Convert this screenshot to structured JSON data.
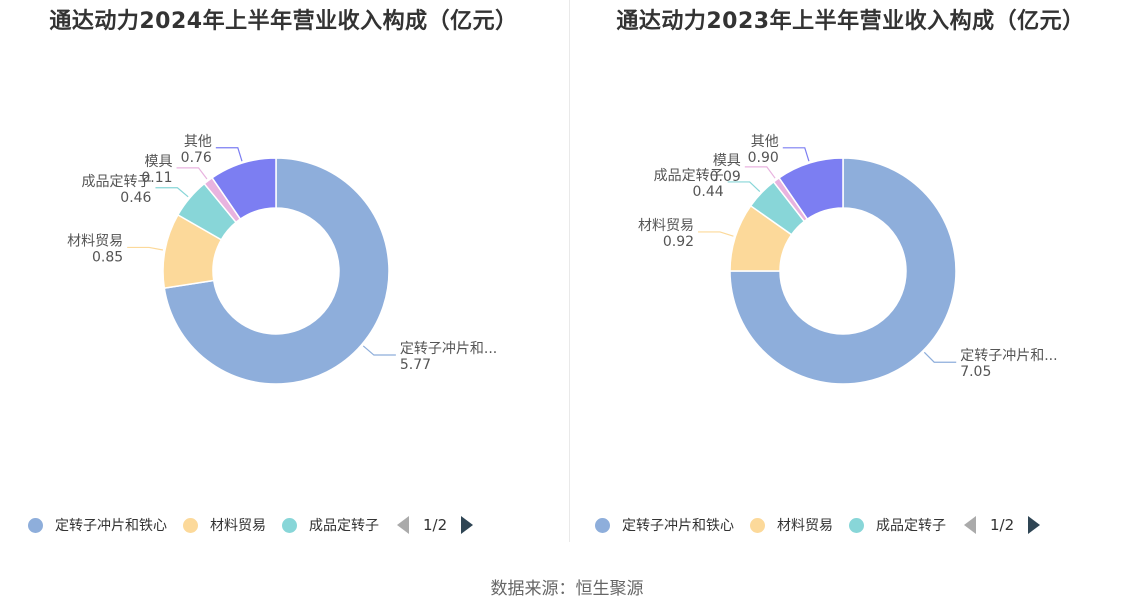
{
  "chart_data": [
    {
      "type": "pie",
      "title": "通达动力2024年上半年营业收入构成（亿元）",
      "legend": {
        "position": "bottom-left",
        "page_indicator": "1/2"
      },
      "slices": [
        {
          "name": "定转子冲片和铁心",
          "label": "定转子冲片和...",
          "value": 5.77,
          "value_label": "5.77",
          "color": "#8eaedb"
        },
        {
          "name": "材料贸易",
          "label": "材料贸易",
          "value": 0.85,
          "value_label": "0.85",
          "color": "#fcd99a"
        },
        {
          "name": "成品定转子",
          "label": "成品定转子",
          "value": 0.46,
          "value_label": "0.46",
          "color": "#88d6d8"
        },
        {
          "name": "模具",
          "label": "模具",
          "value": 0.11,
          "value_label": "0.11",
          "color": "#e8b3df"
        },
        {
          "name": "其他",
          "label": "其他",
          "value": 0.76,
          "value_label": "0.76",
          "color": "#7c7ef2"
        }
      ]
    },
    {
      "type": "pie",
      "title": "通达动力2023年上半年营业收入构成（亿元）",
      "legend": {
        "position": "bottom-left",
        "page_indicator": "1/2"
      },
      "slices": [
        {
          "name": "定转子冲片和铁心",
          "label": "定转子冲片和...",
          "value": 7.05,
          "value_label": "7.05",
          "color": "#8eaedb"
        },
        {
          "name": "材料贸易",
          "label": "材料贸易",
          "value": 0.92,
          "value_label": "0.92",
          "color": "#fcd99a"
        },
        {
          "name": "成品定转子",
          "label": "成品定转子",
          "value": 0.44,
          "value_label": "0.44",
          "color": "#88d6d8"
        },
        {
          "name": "模具",
          "label": "模具",
          "value": 0.09,
          "value_label": "0.09",
          "color": "#e8b3df"
        },
        {
          "name": "其他",
          "label": "其他",
          "value": 0.9,
          "value_label": "0.90",
          "color": "#7c7ef2"
        }
      ]
    }
  ],
  "legend_items": [
    {
      "label": "定转子冲片和铁心",
      "color": "#8eaedb"
    },
    {
      "label": "材料贸易",
      "color": "#fcd99a"
    },
    {
      "label": "成品定转子",
      "color": "#88d6d8"
    }
  ],
  "footer": {
    "source": "数据来源：恒生聚源"
  }
}
